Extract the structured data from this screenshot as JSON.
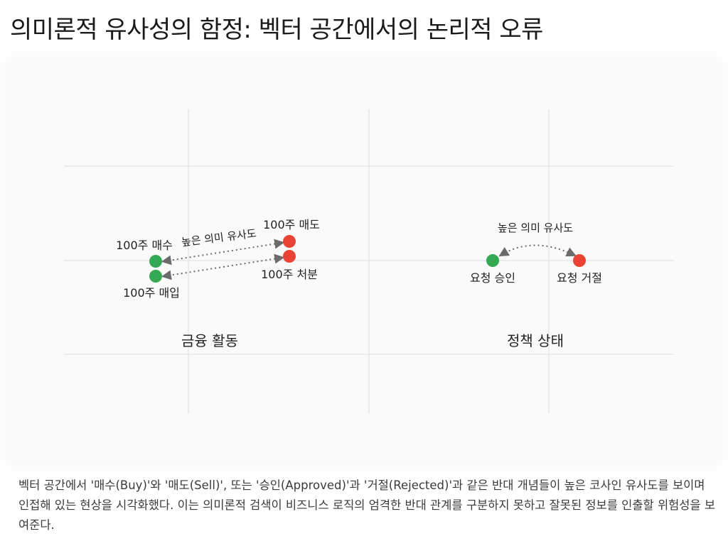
{
  "title": "의미론적 유사성의 함정: 벡터 공간에서의 논리적 오류",
  "colors": {
    "green": "#34a853",
    "red": "#ea4335",
    "grid": "#e2e2e2",
    "arrow": "#6b6b6b"
  },
  "left_panel": {
    "label": "금융 활동",
    "similarity_label": "높은 의미 유사도",
    "points": {
      "buy": "100주 매수",
      "purchase": "100주 매입",
      "sell": "100주 매도",
      "dispose": "100주 처분"
    }
  },
  "right_panel": {
    "label": "정책 상태",
    "similarity_label": "높은 의미 유사도",
    "points": {
      "approve": "요청 승인",
      "reject": "요청 거절"
    }
  },
  "caption": "벡터 공간에서 '매수(Buy)'와 '매도(Sell)', 또는 '승인(Approved)'과 '거절(Rejected)'과 같은 반대 개념들이 높은 코사인 유사도를 보이며 인접해 있는 현상을 시각화했다. 이는 의미론적 검색이 비즈니스 로직의 엄격한 반대 관계를 구분하지 못하고 잘못된 정보를 인출할 위험성을 보여준다."
}
